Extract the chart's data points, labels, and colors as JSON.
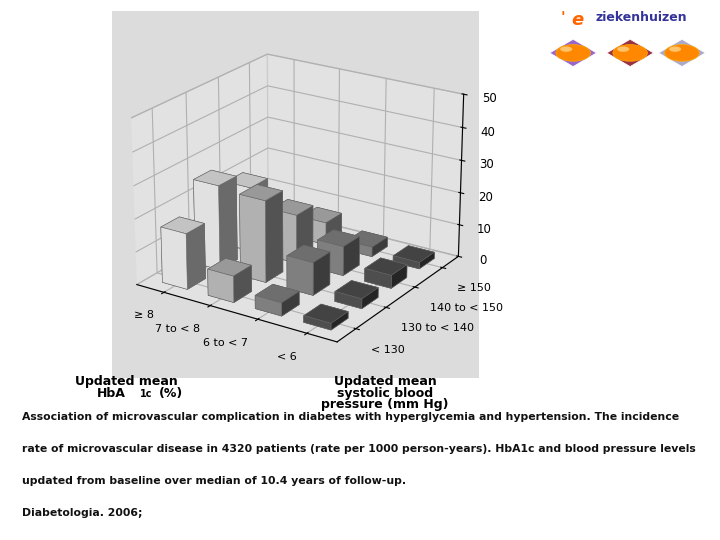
{
  "hba1c_labels": [
    "≥ 8",
    "7 to < 8",
    "6 to < 7",
    "< 6"
  ],
  "bp_labels": [
    "< 130",
    "130 to < 140",
    "140 to < 150",
    "≥ 150"
  ],
  "values": {
    "comment": "rows=HbA1c (>=8,7-8,6-7,<6), cols=BP (<130,130-140,140-150,>=150)",
    "data": [
      [
        17,
        26,
        20,
        6
      ],
      [
        8,
        25,
        15,
        7
      ],
      [
        4,
        10,
        9,
        3
      ],
      [
        2,
        3,
        4,
        2
      ]
    ]
  },
  "hba1c_colors": [
    "#ffffff",
    "#c8c8c8",
    "#909090",
    "#585858"
  ],
  "xlabel_left": "Updated mean\nHbA",
  "xlabel_right": "(%)",
  "ylabel": "Updated mean\nsystolic blood\npressure (mm Hg)",
  "yticks": [
    0,
    10,
    20,
    30,
    40,
    50
  ],
  "caption_bg": "#c5dde8",
  "caption_text1": "Association of microvascular complication in diabetes with hyperglycemia and hypertension. The incidence",
  "caption_text2": "rate of microvascular disease in 4320 patients (rate per 1000 person-years). HbA1c and blood pressure levels",
  "caption_text3": "updated from baseline over median of 10.4 years of follow-up.",
  "caption_text4": "Diabetologia. 2006;",
  "elev": 22,
  "azim": -57
}
